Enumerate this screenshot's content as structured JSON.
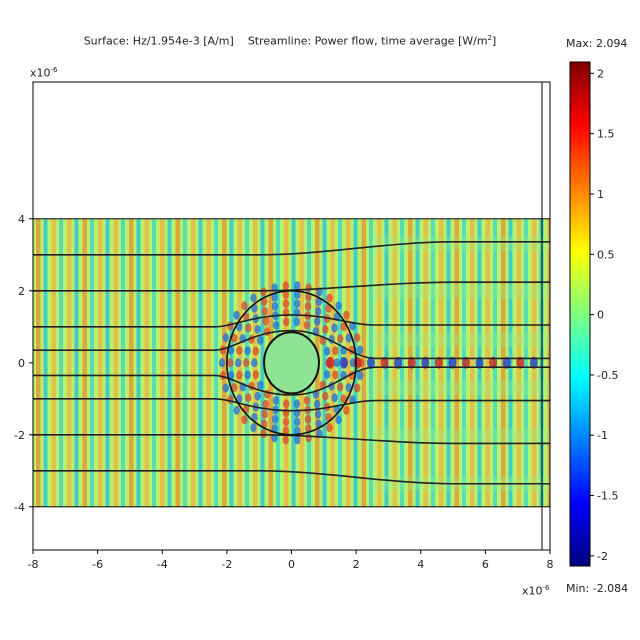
{
  "figure": {
    "title_surface": "Surface: Hz/1.954e-3 [A/m]",
    "title_streamline": "Streamline: Power flow, time average [W/m",
    "title_streamline_tail": "]",
    "max_label": "Max: 2.094",
    "min_label": "Min: -2.084",
    "y_axis_exponent_base": "x10",
    "y_axis_exponent_power": "-6",
    "x_axis_exponent_base": "x10",
    "x_axis_exponent_power": "-6"
  },
  "chart_data": {
    "type": "heatmap",
    "title": "Surface: Hz/1.954e-3 [A/m]   Streamline: Power flow, time average [W/m²]",
    "xlim": [
      -8,
      8
    ],
    "ylim": [
      -5.2,
      7.8
    ],
    "x_ticks": [
      -8,
      -6,
      -4,
      -2,
      0,
      2,
      4,
      6,
      8
    ],
    "x_tick_labels": [
      "-8",
      "-6",
      "-4",
      "-2",
      "0",
      "2",
      "4",
      "6",
      "8"
    ],
    "y_ticks": [
      4,
      2,
      0,
      -2,
      -4
    ],
    "y_tick_labels": [
      "4",
      "2",
      "0",
      "-2",
      "-4"
    ],
    "field_region": {
      "x": [
        -8,
        8
      ],
      "y": [
        -4,
        4
      ]
    },
    "inner_circle": {
      "cx": 0,
      "cy": 0,
      "r": 0.85
    },
    "outer_circle": {
      "cx": 0,
      "cy": 0,
      "r": 2.0
    },
    "colorbar": {
      "min": -2.084,
      "max": 2.094,
      "ticks": [
        2,
        1.5,
        1,
        0.5,
        0,
        -0.5,
        -1,
        -1.5,
        -2
      ],
      "tick_labels": [
        "2",
        "1.5",
        "1",
        "0.5",
        "0",
        "-0.5",
        "-1",
        "-1.5",
        "-2"
      ],
      "colors": [
        "#00007f",
        "#0000ff",
        "#007fff",
        "#00ffff",
        "#7fff7f",
        "#ffff00",
        "#ff7f00",
        "#ff0000",
        "#7f0000"
      ]
    },
    "streamline_y_left": [
      3.0,
      2.0,
      1.0,
      0.35,
      -0.35,
      -1.0,
      -2.0,
      -3.0
    ]
  }
}
